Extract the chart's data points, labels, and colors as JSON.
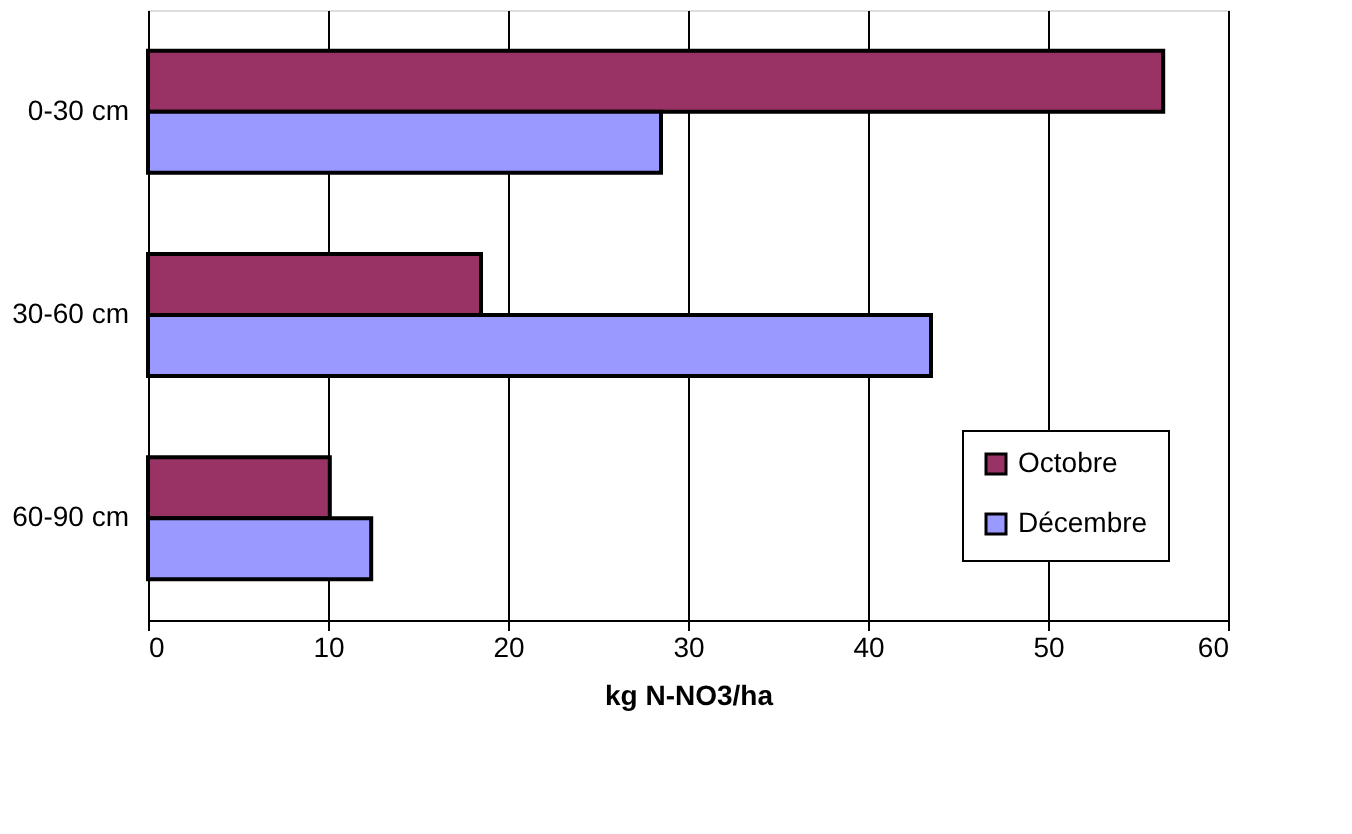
{
  "chart_data": {
    "type": "bar",
    "orientation": "horizontal",
    "xlabel": "kg N-NO3/ha",
    "categories": [
      "0-30 cm",
      "30-60 cm",
      "60-90 cm"
    ],
    "series": [
      {
        "name": "Octobre",
        "color": "#993366",
        "values": [
          56.4,
          18.5,
          10.1
        ]
      },
      {
        "name": "Décembre",
        "color": "#9999ff",
        "values": [
          28.5,
          43.5,
          12.4
        ]
      }
    ],
    "xlim": [
      0,
      60
    ],
    "xticks": [
      0,
      10,
      20,
      30,
      40,
      50,
      60
    ],
    "grid": "x",
    "legend": "bottom right"
  }
}
